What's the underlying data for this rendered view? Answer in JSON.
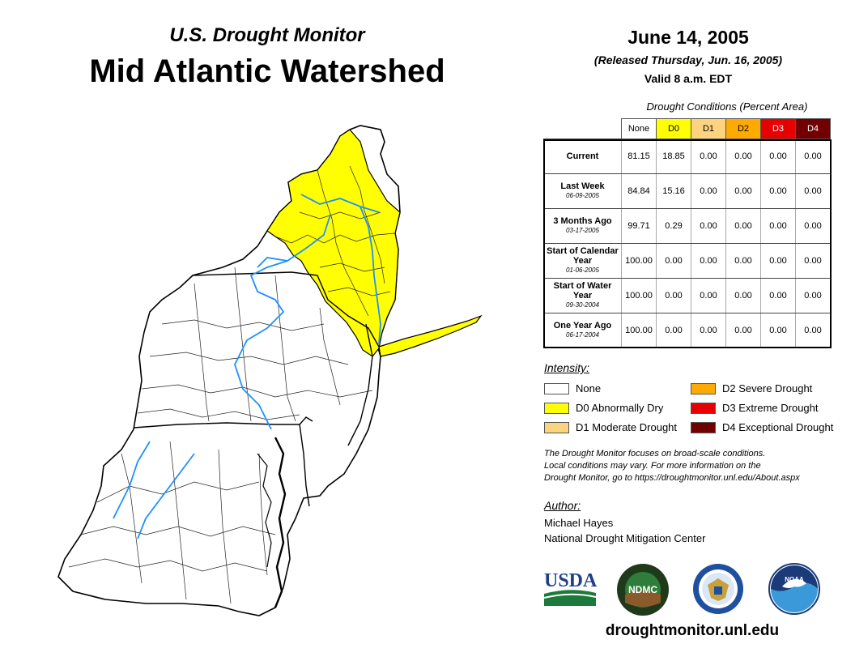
{
  "header": {
    "subtitle": "U.S. Drought Monitor",
    "title": "Mid Atlantic Watershed",
    "date": "June 14, 2005",
    "released": "(Released Thursday, Jun. 16, 2005)",
    "valid": "Valid 8 a.m. EDT"
  },
  "table": {
    "caption": "Drought Conditions (Percent Area)",
    "columns": [
      "None",
      "D0",
      "D1",
      "D2",
      "D3",
      "D4"
    ],
    "column_colors": [
      "#ffffff",
      "#ffff00",
      "#fcd37f",
      "#ffaa00",
      "#e60000",
      "#730000"
    ],
    "rows": [
      {
        "label": "Current",
        "date": "",
        "values": [
          "81.15",
          "18.85",
          "0.00",
          "0.00",
          "0.00",
          "0.00"
        ]
      },
      {
        "label": "Last Week",
        "date": "06-09-2005",
        "values": [
          "84.84",
          "15.16",
          "0.00",
          "0.00",
          "0.00",
          "0.00"
        ]
      },
      {
        "label": "3 Months Ago",
        "date": "03-17-2005",
        "values": [
          "99.71",
          "0.29",
          "0.00",
          "0.00",
          "0.00",
          "0.00"
        ]
      },
      {
        "label": "Start of Calendar Year",
        "date": "01-06-2005",
        "values": [
          "100.00",
          "0.00",
          "0.00",
          "0.00",
          "0.00",
          "0.00"
        ]
      },
      {
        "label": "Start of Water Year",
        "date": "09-30-2004",
        "values": [
          "100.00",
          "0.00",
          "0.00",
          "0.00",
          "0.00",
          "0.00"
        ]
      },
      {
        "label": "One Year Ago",
        "date": "06-17-2004",
        "values": [
          "100.00",
          "0.00",
          "0.00",
          "0.00",
          "0.00",
          "0.00"
        ]
      }
    ]
  },
  "legend": {
    "heading": "Intensity:",
    "items": [
      {
        "label": "None",
        "color": "#ffffff"
      },
      {
        "label": "D0 Abnormally Dry",
        "color": "#ffff00"
      },
      {
        "label": "D1 Moderate Drought",
        "color": "#fcd37f"
      },
      {
        "label": "D2 Severe Drought",
        "color": "#ffaa00"
      },
      {
        "label": "D3 Extreme Drought",
        "color": "#e60000"
      },
      {
        "label": "D4 Exceptional Drought",
        "color": "#730000"
      }
    ]
  },
  "note": {
    "line1": "The Drought Monitor focuses on broad-scale conditions.",
    "line2": "Local conditions may vary. For more information on the",
    "line3": "Drought Monitor, go to https://droughtmonitor.unl.edu/About.aspx"
  },
  "author": {
    "heading": "Author:",
    "name": "Michael Hayes",
    "org": "National Drought Mitigation Center"
  },
  "logos": {
    "usda": "USDA",
    "ndmc": "NDMC",
    "noaa": "NOAA"
  },
  "website": "droughtmonitor.unl.edu",
  "map_colors": {
    "drought_d0": "#ffff00",
    "river": "#1e90ff",
    "land": "#ffffff",
    "boundary": "#000000"
  }
}
